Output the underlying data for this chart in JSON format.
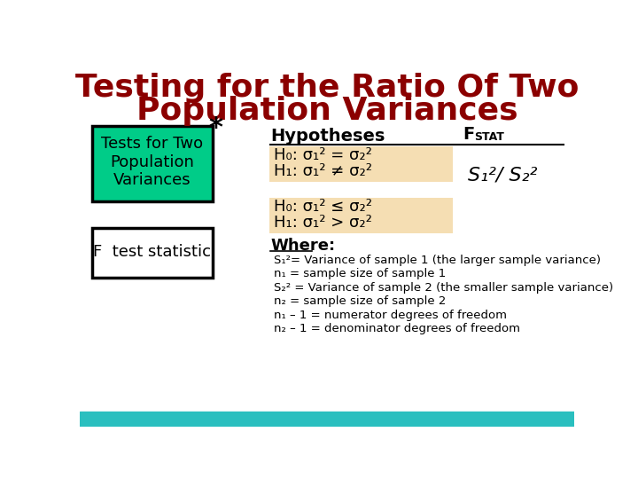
{
  "title_line1": "Testing for the Ratio Of Two",
  "title_line2": "Population Variances",
  "title_color": "#8B0000",
  "title_fontsize": 26,
  "bg_color": "#FFFFFF",
  "bottom_bar_color": "#2ABFBF",
  "box1_bg": "#00CC88",
  "box1_border": "#000000",
  "box1_text": "Tests for Two\nPopulation\nVariances",
  "box2_bg": "#FFFFFF",
  "box2_border": "#000000",
  "box2_text": "F  test statistic",
  "star_text": "*",
  "hypotheses_label": "Hypotheses",
  "fstat_label": "F",
  "fstat_sub": "STAT",
  "hyp_box1_bg": "#F5DEB3",
  "hyp_box2_bg": "#F5DEB3",
  "hyp1_line1": "H₀: σ₁² = σ₂²",
  "hyp1_line2": "H₁: σ₁² ≠ σ₂²",
  "hyp2_line1": "H₀: σ₁² ≤ σ₂²",
  "hyp2_line2": "H₁: σ₁² > σ₂²",
  "fstat_formula": "S₁²/ S₂²",
  "where_label": "Where:",
  "where_lines": [
    "S₁²= Variance of sample 1 (the larger sample variance)",
    "n₁ = sample size of sample 1",
    "S₂² = Variance of sample 2 (the smaller sample variance)",
    "n₂ = sample size of sample 2",
    "n₁ – 1 = numerator degrees of freedom",
    "n₂ – 1 = denominator degrees of freedom"
  ]
}
